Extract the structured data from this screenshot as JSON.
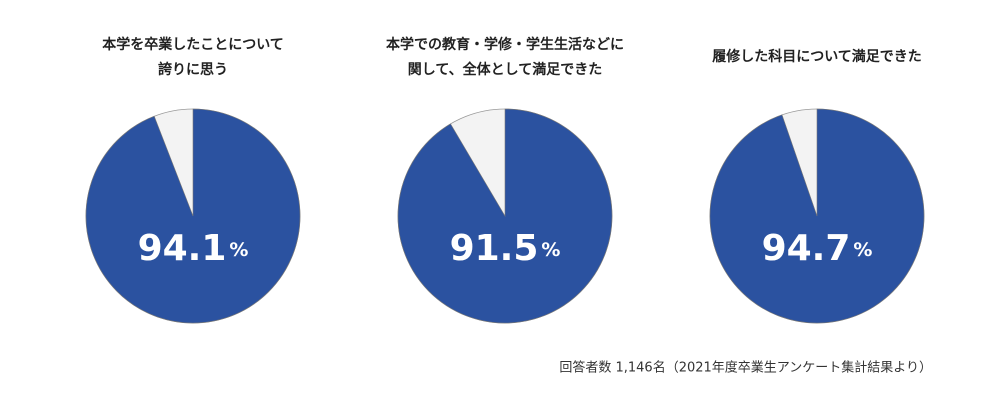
{
  "chart_data": [
    {
      "type": "pie",
      "title": [
        "本学を卒業したことについて",
        "誇りに思う"
      ],
      "values": [
        94.1
      ],
      "unit": "%",
      "color": "#2b52a0"
    },
    {
      "type": "pie",
      "title": [
        "本学での教育・学修・学生生活などに",
        "関して、全体として満足できた"
      ],
      "values": [
        91.5
      ],
      "unit": "%",
      "color": "#2b52a0"
    },
    {
      "type": "pie",
      "title": [
        "履修した科目について満足できた"
      ],
      "values": [
        94.7
      ],
      "unit": "%",
      "color": "#2b52a0"
    }
  ],
  "note": "回答者数 1,146名（2021年度卒業生アンケート集計結果より）"
}
